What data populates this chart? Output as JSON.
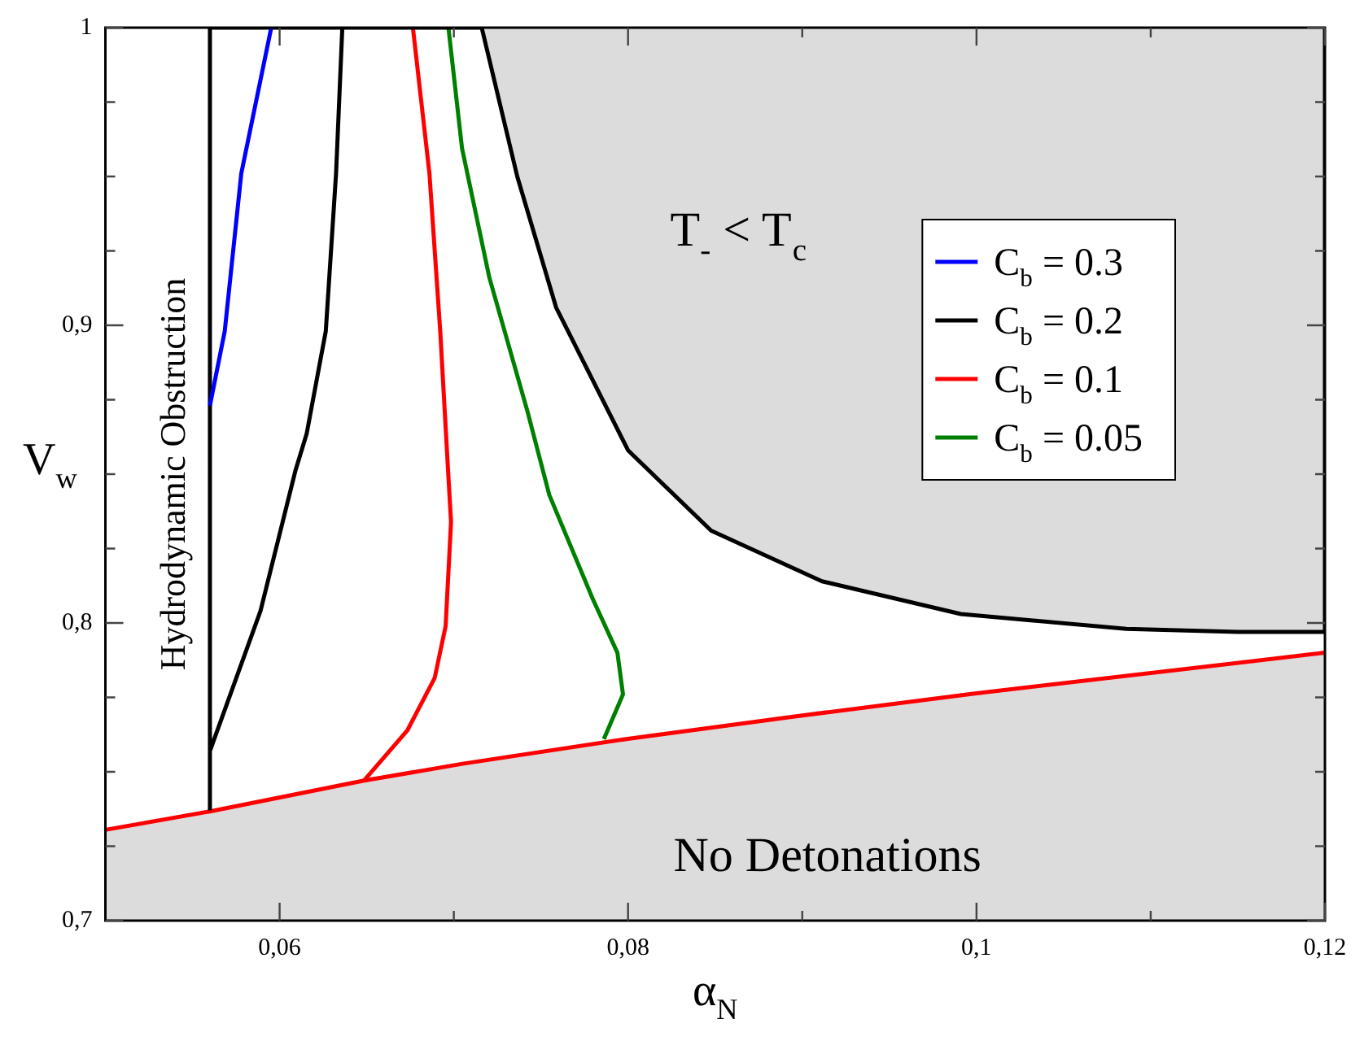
{
  "chart_data": {
    "type": "line",
    "xlabel": "α$_{N}$",
    "ylabel": "V$_{w}$",
    "xlim": [
      0.05,
      0.12
    ],
    "ylim": [
      0.7,
      1
    ],
    "xticks": [
      {
        "value": 0.06,
        "label": "0,06"
      },
      {
        "value": 0.07,
        "label": null
      },
      {
        "value": 0.08,
        "label": "0,08"
      },
      {
        "value": 0.09,
        "label": null
      },
      {
        "value": 0.1,
        "label": "0,1"
      },
      {
        "value": 0.11,
        "label": null
      },
      {
        "value": 0.12,
        "label": "0,12"
      }
    ],
    "yticks": [
      {
        "value": 0.7,
        "label": "0,7"
      },
      {
        "value": 0.725,
        "label": null
      },
      {
        "value": 0.75,
        "label": null
      },
      {
        "value": 0.775,
        "label": null
      },
      {
        "value": 0.8,
        "label": "0,8"
      },
      {
        "value": 0.825,
        "label": null
      },
      {
        "value": 0.85,
        "label": null
      },
      {
        "value": 0.875,
        "label": null
      },
      {
        "value": 0.9,
        "label": "0,9"
      },
      {
        "value": 0.925,
        "label": null
      },
      {
        "value": 0.95,
        "label": null
      },
      {
        "value": 0.975,
        "label": null
      },
      1
    ],
    "grid": false,
    "legend": "top right",
    "marker": "none",
    "series": [
      {
        "name": "C$_{b}$ = 0.3",
        "color": "#0000ff",
        "x": [
          0.056,
          0.05685,
          0.0578,
          0.05952
        ],
        "values": [
          0.873,
          0.898,
          0.951,
          1
        ]
      },
      {
        "name": "C$_{b}$ = 0.2",
        "color": "#000000",
        "x": [
          0.056,
          0.056,
          0.0716,
          0.06,
          0.056,
          0.0589,
          0.0609,
          0.06155,
          0.06265,
          0.06324,
          0.0636
        ],
        "values": [
          0.737,
          1,
          1,
          null,
          0.757,
          0.804,
          0.851,
          0.8635,
          0.898,
          0.951,
          1
        ]
      },
      {
        "color": "#000000",
        "x": [
          0.0716,
          0.07364,
          0.07587,
          0.08,
          0.08477,
          0.09113,
          0.0991,
          0.1086,
          0.115,
          0.12,
          0.12
        ],
        "values": [
          1,
          0.95,
          0.906,
          0.858,
          0.831,
          0.814,
          0.803,
          0.798,
          0.797,
          0.797,
          1
        ],
        "type": "area"
      },
      {
        "name": "C$_{b}$ = 0.1",
        "color": "#ff0000",
        "x": [
          0.06484,
          0.06734,
          0.0689,
          0.06953,
          0.06984,
          0.0697,
          0.06922,
          0.0686,
          0.06765
        ],
        "values": [
          0.747,
          0.764,
          0.7815,
          0.799,
          0.834,
          0.848,
          0.898,
          0.951,
          1
        ]
      },
      {
        "color": "#ff0000",
        "x": [
          0.05,
          0.056,
          0.0648,
          0.0705,
          0.0799,
          0.0893,
          0.0999,
          0.12
        ],
        "values": [
          0.7305,
          0.7367,
          0.747,
          0.7527,
          0.761,
          0.7684,
          0.7763,
          0.79
        ],
        "type": "area"
      },
      {
        "name": "C$_{b}$ = 0.05",
        "color": "#008000",
        "x": [
          0.07861,
          0.07971,
          0.07939,
          0.07798,
          0.07548,
          0.07423,
          0.07204,
          0.07047,
          0.06969
        ],
        "values": [
          0.761,
          0.776,
          0.79,
          0.808,
          0.843,
          0.871,
          0.916,
          0.9595,
          1
        ]
      }
    ],
    "annotations": [
      "T$_{-}$ < T$_{c}$",
      "No Detonations",
      "Hydrodynamic Obstruction"
    ]
  }
}
